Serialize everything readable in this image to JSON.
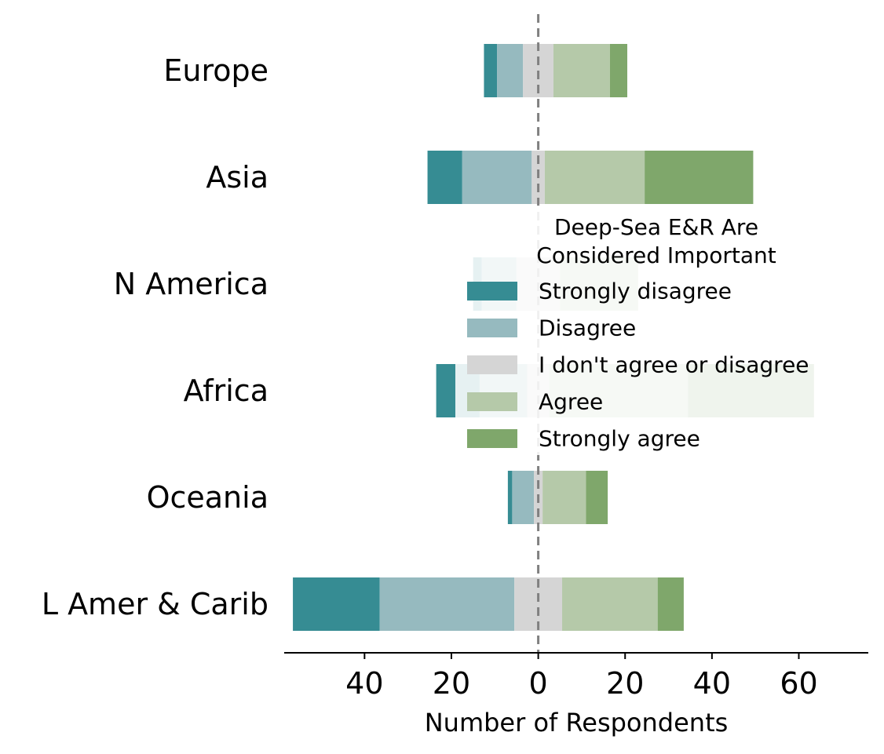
{
  "chart_data": {
    "type": "bar",
    "orientation": "horizontal-diverging",
    "categories": [
      "Europe",
      "Asia",
      "N America",
      "Africa",
      "Oceania",
      "L Amer & Carib"
    ],
    "series": [
      {
        "name": "Strongly disagree",
        "values": [
          3,
          8,
          2,
          10,
          1,
          20
        ]
      },
      {
        "name": "Disagree",
        "values": [
          6,
          16,
          8,
          11,
          5,
          31
        ]
      },
      {
        "name": "I don't agree or disagree",
        "values": [
          7,
          3,
          10,
          5,
          2,
          11
        ]
      },
      {
        "name": "Agree",
        "values": [
          13,
          23,
          18,
          32,
          10,
          22
        ]
      },
      {
        "name": "Strongly agree",
        "values": [
          4,
          25,
          0,
          29,
          5,
          6
        ]
      }
    ],
    "colors": [
      "#368c93",
      "#96babf",
      "#d5d5d5",
      "#b5c9a9",
      "#7fa76b"
    ],
    "xlabel": "Number of Respondents",
    "xticks": [
      -40,
      -20,
      0,
      20,
      40,
      60
    ],
    "xtick_labels": [
      "40",
      "20",
      "0",
      "20",
      "40",
      "60"
    ],
    "xlim": [
      -58.5,
      76
    ],
    "zero_line": "dashed",
    "legend": {
      "title_lines": [
        "Deep-Sea E&R Are",
        "Considered Important"
      ],
      "placement": "center-right",
      "semi_transparent": true
    }
  }
}
